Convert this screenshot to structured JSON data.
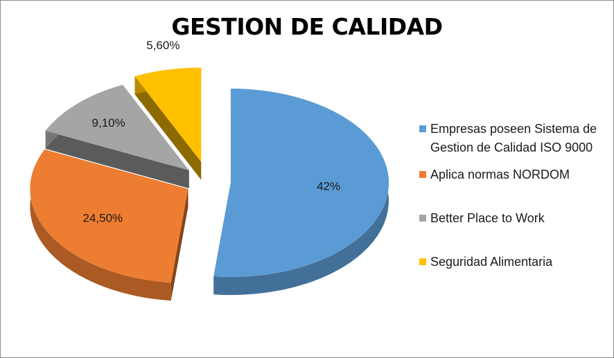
{
  "chart_data": {
    "type": "pie",
    "title": "GESTION DE CALIDAD",
    "categories": [
      "Empresas poseen Sistema de Gestion de Calidad ISO 9000",
      "Aplica normas NORDOM",
      "Better Place to Work",
      "Seguridad Alimentaria"
    ],
    "values": [
      42,
      24.5,
      9.1,
      5.6
    ],
    "data_labels": [
      "42%",
      "24,50%",
      "9,10%",
      "5,60%"
    ],
    "colors": [
      "#5b9bd5",
      "#ed7d31",
      "#a5a5a5",
      "#ffc000"
    ],
    "exploded": true,
    "three_d": true,
    "legend_position": "right"
  },
  "legend": {
    "items": [
      {
        "label_line1": "Empresas poseen Sistema de",
        "label_line2": "Gestion de Calidad ISO 9000"
      },
      {
        "label_line1": "Aplica normas NORDOM",
        "label_line2": ""
      },
      {
        "label_line1": "Better Place to Work",
        "label_line2": ""
      },
      {
        "label_line1": "Seguridad Alimentaria",
        "label_line2": ""
      }
    ]
  }
}
